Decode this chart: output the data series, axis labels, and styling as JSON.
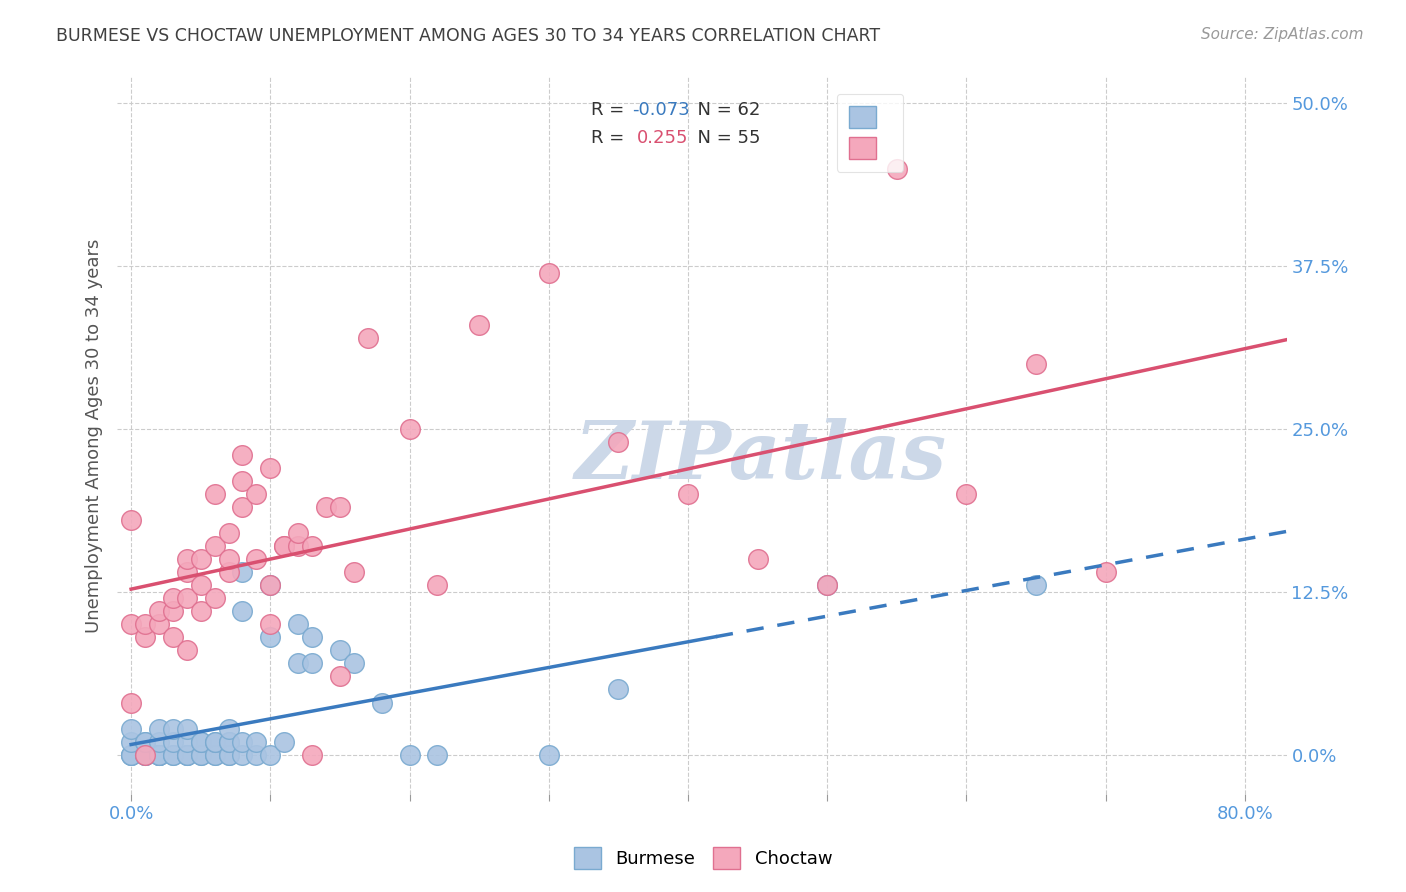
{
  "title": "BURMESE VS CHOCTAW UNEMPLOYMENT AMONG AGES 30 TO 34 YEARS CORRELATION CHART",
  "source": "Source: ZipAtlas.com",
  "ylabel": "Unemployment Among Ages 30 to 34 years",
  "xlim": [
    0.0,
    0.83
  ],
  "ylim": [
    -0.03,
    0.52
  ],
  "burmese_R": -0.073,
  "burmese_N": 62,
  "choctaw_R": 0.255,
  "choctaw_N": 55,
  "burmese_color": "#aac4e2",
  "choctaw_color": "#f4a8bc",
  "burmese_edge_color": "#7aaad0",
  "choctaw_edge_color": "#e07090",
  "burmese_line_color": "#3a7abf",
  "choctaw_line_color": "#d95070",
  "watermark_text": "ZIPatlas",
  "watermark_color": "#ccd8e8",
  "title_color": "#404040",
  "axis_label_color": "#555555",
  "tick_color": "#5599dd",
  "grid_color": "#cccccc",
  "burmese_x": [
    0.0,
    0.0,
    0.0,
    0.0,
    0.0,
    0.01,
    0.01,
    0.01,
    0.01,
    0.01,
    0.02,
    0.02,
    0.02,
    0.02,
    0.02,
    0.02,
    0.02,
    0.03,
    0.03,
    0.03,
    0.03,
    0.04,
    0.04,
    0.04,
    0.04,
    0.04,
    0.05,
    0.05,
    0.05,
    0.05,
    0.06,
    0.06,
    0.06,
    0.06,
    0.07,
    0.07,
    0.07,
    0.07,
    0.07,
    0.08,
    0.08,
    0.08,
    0.08,
    0.09,
    0.09,
    0.1,
    0.1,
    0.1,
    0.11,
    0.12,
    0.12,
    0.13,
    0.13,
    0.15,
    0.16,
    0.18,
    0.2,
    0.22,
    0.3,
    0.35,
    0.5,
    0.65
  ],
  "burmese_y": [
    0.0,
    0.0,
    0.0,
    0.01,
    0.02,
    0.0,
    0.0,
    0.0,
    0.01,
    0.01,
    0.0,
    0.0,
    0.0,
    0.0,
    0.0,
    0.01,
    0.02,
    0.0,
    0.0,
    0.01,
    0.02,
    0.0,
    0.0,
    0.0,
    0.01,
    0.02,
    0.0,
    0.0,
    0.01,
    0.01,
    0.0,
    0.0,
    0.01,
    0.01,
    0.0,
    0.0,
    0.01,
    0.01,
    0.02,
    0.0,
    0.01,
    0.11,
    0.14,
    0.0,
    0.01,
    0.0,
    0.09,
    0.13,
    0.01,
    0.07,
    0.1,
    0.07,
    0.09,
    0.08,
    0.07,
    0.04,
    0.0,
    0.0,
    0.0,
    0.05,
    0.13,
    0.13
  ],
  "choctaw_x": [
    0.0,
    0.0,
    0.0,
    0.01,
    0.01,
    0.01,
    0.02,
    0.02,
    0.03,
    0.03,
    0.03,
    0.04,
    0.04,
    0.04,
    0.04,
    0.05,
    0.05,
    0.05,
    0.06,
    0.06,
    0.06,
    0.07,
    0.07,
    0.07,
    0.08,
    0.08,
    0.08,
    0.09,
    0.09,
    0.1,
    0.1,
    0.1,
    0.11,
    0.11,
    0.12,
    0.12,
    0.13,
    0.13,
    0.14,
    0.15,
    0.15,
    0.16,
    0.17,
    0.2,
    0.22,
    0.25,
    0.3,
    0.35,
    0.4,
    0.45,
    0.5,
    0.55,
    0.6,
    0.65,
    0.7
  ],
  "choctaw_y": [
    0.04,
    0.1,
    0.18,
    0.0,
    0.09,
    0.1,
    0.1,
    0.11,
    0.09,
    0.11,
    0.12,
    0.08,
    0.12,
    0.14,
    0.15,
    0.11,
    0.13,
    0.15,
    0.12,
    0.16,
    0.2,
    0.14,
    0.15,
    0.17,
    0.19,
    0.21,
    0.23,
    0.15,
    0.2,
    0.1,
    0.13,
    0.22,
    0.16,
    0.16,
    0.16,
    0.17,
    0.0,
    0.16,
    0.19,
    0.06,
    0.19,
    0.14,
    0.32,
    0.25,
    0.13,
    0.33,
    0.37,
    0.24,
    0.2,
    0.15,
    0.13,
    0.45,
    0.2,
    0.3,
    0.14
  ]
}
